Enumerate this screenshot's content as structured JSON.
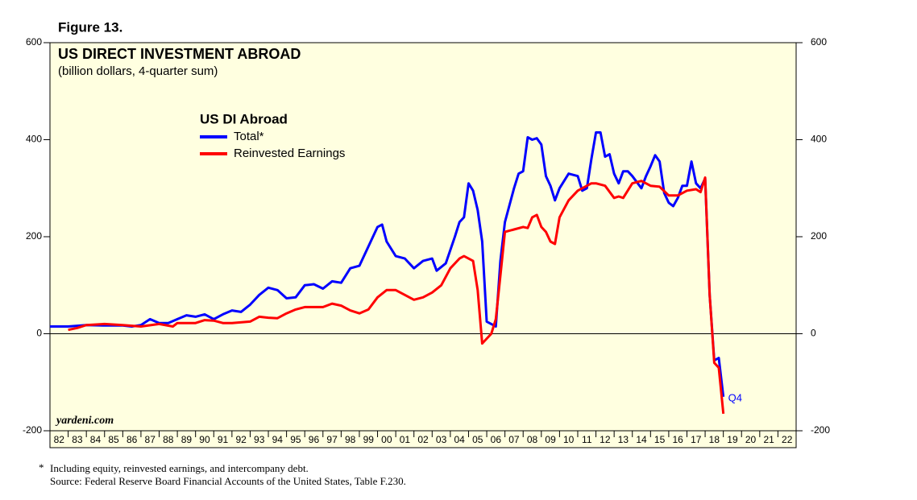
{
  "chart_data": {
    "type": "line",
    "figure_label": "Figure 13.",
    "title": "US DIRECT INVESTMENT ABROAD",
    "subtitle": "(billion dollars, 4-quarter sum)",
    "legend_title": "US DI Abroad",
    "watermark": "yardeni.com",
    "annotation": "Q4",
    "footnote_marker": "*",
    "footnotes": [
      "Including equity, reinvested earnings, and intercompany debt.",
      "Source: Federal Reserve Board Financial Accounts of the United States, Table F.230."
    ],
    "background": "#ffffe0",
    "xlim": [
      1982,
      2023
    ],
    "xticks": [
      {
        "value": 1982,
        "label": "82"
      },
      {
        "value": 1983,
        "label": "83"
      },
      {
        "value": 1984,
        "label": "84"
      },
      {
        "value": 1985,
        "label": "85"
      },
      {
        "value": 1986,
        "label": "86"
      },
      {
        "value": 1987,
        "label": "87"
      },
      {
        "value": 1988,
        "label": "88"
      },
      {
        "value": 1989,
        "label": "89"
      },
      {
        "value": 1990,
        "label": "90"
      },
      {
        "value": 1991,
        "label": "91"
      },
      {
        "value": 1992,
        "label": "92"
      },
      {
        "value": 1993,
        "label": "93"
      },
      {
        "value": 1994,
        "label": "94"
      },
      {
        "value": 1995,
        "label": "95"
      },
      {
        "value": 1996,
        "label": "96"
      },
      {
        "value": 1997,
        "label": "97"
      },
      {
        "value": 1998,
        "label": "98"
      },
      {
        "value": 1999,
        "label": "99"
      },
      {
        "value": 2000,
        "label": "00"
      },
      {
        "value": 2001,
        "label": "01"
      },
      {
        "value": 2002,
        "label": "02"
      },
      {
        "value": 2003,
        "label": "03"
      },
      {
        "value": 2004,
        "label": "04"
      },
      {
        "value": 2005,
        "label": "05"
      },
      {
        "value": 2006,
        "label": "06"
      },
      {
        "value": 2007,
        "label": "07"
      },
      {
        "value": 2008,
        "label": "08"
      },
      {
        "value": 2009,
        "label": "09"
      },
      {
        "value": 2010,
        "label": "10"
      },
      {
        "value": 2011,
        "label": "11"
      },
      {
        "value": 2012,
        "label": "12"
      },
      {
        "value": 2013,
        "label": "13"
      },
      {
        "value": 2014,
        "label": "14"
      },
      {
        "value": 2015,
        "label": "15"
      },
      {
        "value": 2016,
        "label": "16"
      },
      {
        "value": 2017,
        "label": "17"
      },
      {
        "value": 2018,
        "label": "18"
      },
      {
        "value": 2019,
        "label": "19"
      },
      {
        "value": 2020,
        "label": "20"
      },
      {
        "value": 2021,
        "label": "21"
      },
      {
        "value": 2022,
        "label": "22"
      }
    ],
    "ylim": [
      -200,
      600
    ],
    "yticks": [
      -200,
      0,
      200,
      400,
      600
    ],
    "series": [
      {
        "name": "Total*",
        "color": "#0000ff",
        "x": [
          1982,
          1983,
          1984,
          1985,
          1986,
          1986.5,
          1987,
          1987.5,
          1988,
          1988.5,
          1989,
          1989.5,
          1990,
          1990.5,
          1991,
          1991.5,
          1992,
          1992.5,
          1993,
          1993.5,
          1994,
          1994.5,
          1995,
          1995.5,
          1996,
          1996.5,
          1997,
          1997.5,
          1998,
          1998.5,
          1999,
          1999.5,
          2000,
          2000.25,
          2000.5,
          2001,
          2001.5,
          2002,
          2002.5,
          2003,
          2003.25,
          2003.75,
          2004.25,
          2004.5,
          2004.75,
          2005,
          2005.25,
          2005.5,
          2005.75,
          2006,
          2006.25,
          2006.5,
          2006.75,
          2007,
          2007.5,
          2007.75,
          2008,
          2008.25,
          2008.5,
          2008.75,
          2009,
          2009.25,
          2009.5,
          2009.75,
          2010,
          2010.5,
          2011,
          2011.25,
          2011.5,
          2011.75,
          2012,
          2012.25,
          2012.5,
          2012.75,
          2013,
          2013.25,
          2013.5,
          2013.75,
          2014,
          2014.5,
          2014.75,
          2015,
          2015.25,
          2015.5,
          2015.75,
          2016,
          2016.25,
          2016.5,
          2016.75,
          2017,
          2017.25,
          2017.5,
          2017.75,
          2018,
          2018.25,
          2018.5,
          2018.75,
          2019
        ],
        "values": [
          15,
          15,
          18,
          17,
          17,
          15,
          18,
          30,
          22,
          22,
          30,
          38,
          35,
          40,
          30,
          40,
          48,
          45,
          60,
          80,
          95,
          90,
          73,
          75,
          100,
          102,
          93,
          108,
          105,
          135,
          140,
          180,
          220,
          225,
          190,
          160,
          155,
          135,
          150,
          155,
          130,
          145,
          200,
          230,
          240,
          310,
          295,
          255,
          190,
          25,
          20,
          15,
          150,
          230,
          300,
          330,
          335,
          405,
          400,
          403,
          390,
          325,
          305,
          275,
          300,
          330,
          325,
          295,
          300,
          360,
          415,
          415,
          365,
          370,
          330,
          310,
          335,
          335,
          325,
          300,
          325,
          345,
          368,
          355,
          290,
          270,
          263,
          280,
          305,
          305,
          355,
          310,
          300,
          320,
          80,
          -55,
          -50,
          -130
        ]
      },
      {
        "name": "Reinvested Earnings",
        "color": "#ff0000",
        "x": [
          1983,
          1983.5,
          1984,
          1985,
          1986,
          1987,
          1988,
          1988.75,
          1989,
          1990,
          1990.5,
          1991,
          1991.5,
          1992,
          1993,
          1993.5,
          1994,
          1994.5,
          1995,
          1995.5,
          1996,
          1997,
          1997.5,
          1998,
          1998.5,
          1999,
          1999.5,
          2000,
          2000.5,
          2001,
          2001.5,
          2002,
          2002.5,
          2003,
          2003.5,
          2004,
          2004.5,
          2004.75,
          2005.25,
          2005.5,
          2005.75,
          2006.25,
          2006.5,
          2006.75,
          2007,
          2007.5,
          2008,
          2008.25,
          2008.5,
          2008.75,
          2009,
          2009.25,
          2009.5,
          2009.75,
          2010,
          2010.5,
          2011,
          2011.25,
          2011.75,
          2012,
          2012.5,
          2013,
          2013.25,
          2013.5,
          2014,
          2014.5,
          2015,
          2015.5,
          2016,
          2016.5,
          2017,
          2017.5,
          2017.75,
          2018,
          2018.25,
          2018.5,
          2018.75,
          2019
        ],
        "values": [
          8,
          12,
          18,
          20,
          18,
          15,
          20,
          15,
          22,
          22,
          28,
          27,
          22,
          22,
          25,
          35,
          33,
          32,
          42,
          50,
          55,
          55,
          62,
          58,
          48,
          42,
          50,
          75,
          90,
          90,
          80,
          70,
          75,
          85,
          100,
          135,
          155,
          160,
          150,
          90,
          -20,
          0,
          30,
          120,
          210,
          215,
          220,
          218,
          240,
          245,
          220,
          210,
          190,
          185,
          240,
          275,
          295,
          300,
          310,
          310,
          305,
          280,
          283,
          280,
          310,
          315,
          305,
          303,
          285,
          285,
          295,
          298,
          292,
          322,
          80,
          -60,
          -70,
          -165
        ]
      }
    ]
  }
}
